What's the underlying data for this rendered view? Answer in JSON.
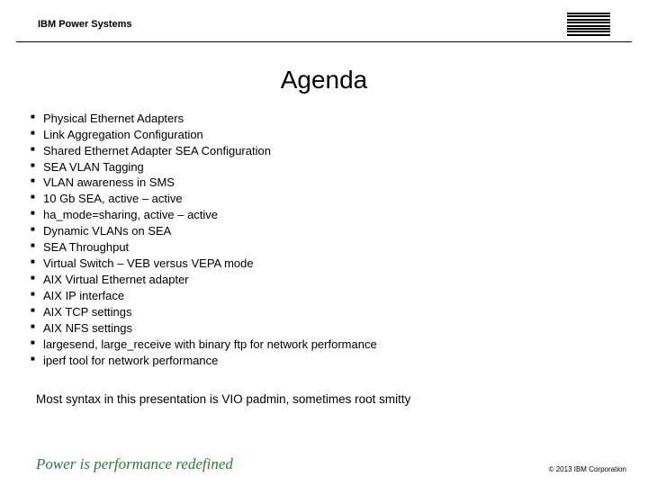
{
  "header": {
    "label": "IBM Power Systems"
  },
  "title": "Agenda",
  "bullets": [
    "Physical Ethernet Adapters",
    "Link Aggregation Configuration",
    "Shared Ethernet Adapter SEA Configuration",
    "SEA VLAN Tagging",
    "VLAN awareness in SMS",
    "10 Gb SEA, active – active",
    "ha_mode=sharing, active – active",
    "Dynamic VLANs on SEA",
    "SEA Throughput",
    "Virtual Switch – VEB versus VEPA mode",
    "AIX Virtual Ethernet adapter",
    "AIX IP interface",
    "AIX TCP settings",
    "AIX NFS settings",
    "largesend, large_receive with binary ftp for network performance",
    "iperf tool for network performance"
  ],
  "note": "Most syntax in this presentation is VIO padmin, sometimes root smitty",
  "footer": {
    "tagline": "Power is performance redefined",
    "copyright": "© 2013 IBM Corporation"
  }
}
